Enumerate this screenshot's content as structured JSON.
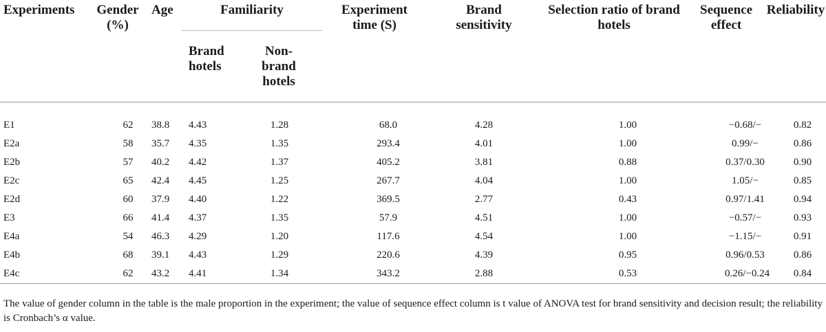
{
  "table": {
    "headers": {
      "experiments": "Experiments",
      "gender": "Gender (%)",
      "age": "Age",
      "familiarity": "Familiarity",
      "brand_hotels": "Brand hotels",
      "non_brand_hotels": "Non-brand hotels",
      "experiment_time": "Experiment time (S)",
      "brand_sensitivity": "Brand sensitivity",
      "selection_ratio": "Selection ratio of brand hotels",
      "sequence_effect": "Sequence effect",
      "reliability": "Reliability"
    },
    "rows": [
      {
        "exp": "E1",
        "gender": "62",
        "age": "38.8",
        "brand": "4.43",
        "nonbrand": "1.28",
        "time": "68.0",
        "sens": "4.28",
        "ratio": "1.00",
        "seq": "−0.68/−",
        "rel": "0.82"
      },
      {
        "exp": "E2a",
        "gender": "58",
        "age": "35.7",
        "brand": "4.35",
        "nonbrand": "1.35",
        "time": "293.4",
        "sens": "4.01",
        "ratio": "1.00",
        "seq": "0.99/−",
        "rel": "0.86"
      },
      {
        "exp": "E2b",
        "gender": "57",
        "age": "40.2",
        "brand": "4.42",
        "nonbrand": "1.37",
        "time": "405.2",
        "sens": "3.81",
        "ratio": "0.88",
        "seq": "0.37/0.30",
        "rel": "0.90"
      },
      {
        "exp": "E2c",
        "gender": "65",
        "age": "42.4",
        "brand": "4.45",
        "nonbrand": "1.25",
        "time": "267.7",
        "sens": "4.04",
        "ratio": "1.00",
        "seq": "1.05/−",
        "rel": "0.85"
      },
      {
        "exp": "E2d",
        "gender": "60",
        "age": "37.9",
        "brand": "4.40",
        "nonbrand": "1.22",
        "time": "369.5",
        "sens": "2.77",
        "ratio": "0.43",
        "seq": "0.97/1.41",
        "rel": "0.94"
      },
      {
        "exp": "E3",
        "gender": "66",
        "age": "41.4",
        "brand": "4.37",
        "nonbrand": "1.35",
        "time": "57.9",
        "sens": "4.51",
        "ratio": "1.00",
        "seq": "−0.57/−",
        "rel": "0.93"
      },
      {
        "exp": "E4a",
        "gender": "54",
        "age": "46.3",
        "brand": "4.29",
        "nonbrand": "1.20",
        "time": "117.6",
        "sens": "4.54",
        "ratio": "1.00",
        "seq": "−1.15/−",
        "rel": "0.91"
      },
      {
        "exp": "E4b",
        "gender": "68",
        "age": "39.1",
        "brand": "4.43",
        "nonbrand": "1.29",
        "time": "220.6",
        "sens": "4.39",
        "ratio": "0.95",
        "seq": "0.96/0.53",
        "rel": "0.86"
      },
      {
        "exp": "E4c",
        "gender": "62",
        "age": "43.2",
        "brand": "4.41",
        "nonbrand": "1.34",
        "time": "343.2",
        "sens": "2.88",
        "ratio": "0.53",
        "seq": "0.26/−0.24",
        "rel": "0.84"
      }
    ]
  },
  "footnote": "The value of gender column in the table is the male proportion in the experiment; the value of sequence effect column is t value of ANOVA test for brand sensitivity and decision result; the reliability is Cronbach’s α value."
}
